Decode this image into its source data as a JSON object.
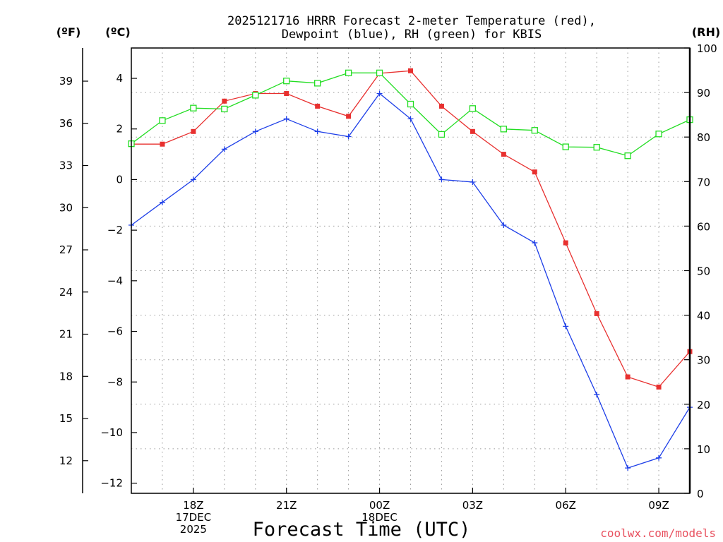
{
  "chart_data": {
    "type": "line",
    "title_line1": "2025121716 HRRR Forecast 2-meter Temperature (red),",
    "title_line2": "Dewpoint (blue), RH (green) for KBIS",
    "xlabel": "Forecast Time (UTC)",
    "credit": "coolwx.com/models",
    "axis_units": {
      "fahrenheit": "(ºF)",
      "celsius": "(ºC)",
      "rh": "(RH)"
    },
    "x_hours": [
      16,
      17,
      18,
      19,
      20,
      21,
      22,
      23,
      24,
      25,
      26,
      27,
      28,
      29,
      30,
      31,
      32,
      33,
      34
    ],
    "x_ticks": [
      {
        "hour": 18,
        "lines": [
          "18Z",
          "17DEC",
          "2025"
        ]
      },
      {
        "hour": 21,
        "lines": [
          "21Z"
        ]
      },
      {
        "hour": 24,
        "lines": [
          "00Z",
          "18DEC"
        ]
      },
      {
        "hour": 27,
        "lines": [
          "03Z"
        ]
      },
      {
        "hour": 30,
        "lines": [
          "06Z"
        ]
      },
      {
        "hour": 33,
        "lines": [
          "09Z"
        ]
      }
    ],
    "xlim": [
      16,
      34
    ],
    "ylim_celsius": [
      -12.4,
      5.2
    ],
    "ylim_rh": [
      0,
      100
    ],
    "celsius_ticks": [
      4,
      2,
      0,
      -2,
      -4,
      -6,
      -8,
      -10,
      -12
    ],
    "celsius_tick_labels": [
      "4",
      "2",
      "0",
      "−2",
      "−4",
      "−6",
      "−8",
      "−10",
      "−12"
    ],
    "fahrenheit_ticks": [
      39,
      36,
      33,
      30,
      27,
      24,
      21,
      18,
      15,
      12
    ],
    "rh_ticks": [
      100,
      90,
      80,
      70,
      60,
      50,
      40,
      30,
      20,
      10,
      0
    ],
    "series": [
      {
        "name": "Temperature",
        "color": "#e8302f",
        "marker": "filled-square",
        "values": [
          1.4,
          1.4,
          1.9,
          3.1,
          3.4,
          3.4,
          2.9,
          2.5,
          4.2,
          4.3,
          2.9,
          1.9,
          1.0,
          0.3,
          -2.5,
          -5.3,
          -7.8,
          -8.2,
          -6.8
        ]
      },
      {
        "name": "Dewpoint",
        "color": "#1e3fe8",
        "marker": "plus",
        "values": [
          -1.8,
          -0.9,
          0.0,
          1.2,
          1.9,
          2.4,
          1.9,
          1.7,
          3.4,
          2.4,
          0.0,
          -0.1,
          -1.8,
          -2.5,
          -5.8,
          -8.5,
          -11.4,
          -11.0,
          -9.0
        ]
      },
      {
        "name": "RH",
        "color": "#22dd22",
        "marker": "open-square",
        "values": [
          78.5,
          83.7,
          86.5,
          86.3,
          89.4,
          92.6,
          92.1,
          94.4,
          94.4,
          87.4,
          80.6,
          86.4,
          81.8,
          81.5,
          77.8,
          77.7,
          75.8,
          80.7,
          83.9
        ]
      }
    ]
  }
}
